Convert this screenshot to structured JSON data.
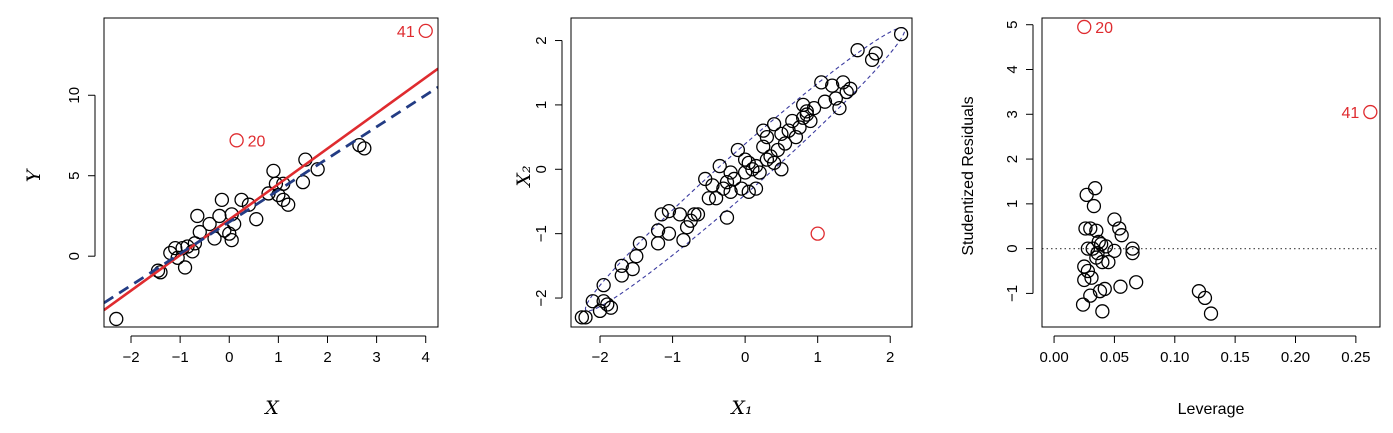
{
  "colors": {
    "points": "#000000",
    "highlight": "#DF2B2F",
    "fit_all": "#DF2B2F",
    "fit_excl": "#233C84",
    "ellipse": "#3C3CA0",
    "zero_line": "#555555"
  },
  "chart_data": [
    {
      "type": "scatter",
      "title": "",
      "xlabel": "X",
      "ylabel": "Y",
      "xlim": [
        -2.55,
        4.25
      ],
      "ylim": [
        -4.4,
        14.8
      ],
      "xticks": [
        -2,
        -1,
        0,
        1,
        2,
        3,
        4
      ],
      "yticks": [
        0,
        5,
        10
      ],
      "grid": false,
      "points": [
        [
          -2.3,
          -3.9
        ],
        [
          -1.45,
          -0.9
        ],
        [
          -1.4,
          -1.0
        ],
        [
          -1.2,
          0.2
        ],
        [
          -1.1,
          0.5
        ],
        [
          -1.05,
          -0.1
        ],
        [
          -0.95,
          0.5
        ],
        [
          -0.9,
          -0.7
        ],
        [
          -0.85,
          0.6
        ],
        [
          -0.75,
          0.3
        ],
        [
          -0.7,
          0.8
        ],
        [
          -0.65,
          2.5
        ],
        [
          -0.6,
          1.5
        ],
        [
          -0.4,
          2.0
        ],
        [
          -0.3,
          1.1
        ],
        [
          -0.2,
          2.5
        ],
        [
          -0.15,
          3.5
        ],
        [
          -0.1,
          1.6
        ],
        [
          0.0,
          1.4
        ],
        [
          0.05,
          1.0
        ],
        [
          0.05,
          2.6
        ],
        [
          0.1,
          2.0
        ],
        [
          0.25,
          3.5
        ],
        [
          0.4,
          3.2
        ],
        [
          0.55,
          2.3
        ],
        [
          0.8,
          3.9
        ],
        [
          0.9,
          5.3
        ],
        [
          0.95,
          4.5
        ],
        [
          1.0,
          3.8
        ],
        [
          1.1,
          4.5
        ],
        [
          1.1,
          3.5
        ],
        [
          1.2,
          3.2
        ],
        [
          1.5,
          4.6
        ],
        [
          1.55,
          6.0
        ],
        [
          1.8,
          5.4
        ],
        [
          2.65,
          6.9
        ],
        [
          2.75,
          6.7
        ]
      ],
      "highlighted": [
        {
          "label": "20",
          "x": 0.15,
          "y": 7.2,
          "label_side": "right"
        },
        {
          "label": "41",
          "x": 4.0,
          "y": 14.0,
          "label_side": "left"
        }
      ],
      "lines": [
        {
          "style": "solid",
          "color_key": "fit_all",
          "x": [
            -2.55,
            4.25
          ],
          "y": [
            -3.35,
            11.65
          ]
        },
        {
          "style": "dashed",
          "color_key": "fit_excl",
          "x": [
            -2.55,
            4.25
          ],
          "y": [
            -2.9,
            10.5
          ]
        }
      ]
    },
    {
      "type": "scatter",
      "title": "",
      "xlabel": "X₁",
      "ylabel": "X₂",
      "xlim": [
        -2.4,
        2.3
      ],
      "ylim": [
        -2.45,
        2.35
      ],
      "xticks": [
        -2,
        -1,
        0,
        1,
        2
      ],
      "yticks": [
        -2,
        -1,
        0,
        1,
        2
      ],
      "grid": false,
      "points": [
        [
          -2.25,
          -2.3
        ],
        [
          -2.2,
          -2.3
        ],
        [
          -2.1,
          -2.05
        ],
        [
          -2.0,
          -2.2
        ],
        [
          -1.95,
          -1.8
        ],
        [
          -1.95,
          -2.05
        ],
        [
          -1.9,
          -2.1
        ],
        [
          -1.85,
          -2.15
        ],
        [
          -1.7,
          -1.65
        ],
        [
          -1.7,
          -1.5
        ],
        [
          -1.55,
          -1.55
        ],
        [
          -1.5,
          -1.35
        ],
        [
          -1.45,
          -1.15
        ],
        [
          -1.2,
          -0.95
        ],
        [
          -1.2,
          -1.15
        ],
        [
          -1.15,
          -0.7
        ],
        [
          -1.05,
          -0.65
        ],
        [
          -1.05,
          -1.0
        ],
        [
          -0.9,
          -0.7
        ],
        [
          -0.85,
          -1.1
        ],
        [
          -0.8,
          -0.9
        ],
        [
          -0.75,
          -0.8
        ],
        [
          -0.7,
          -0.7
        ],
        [
          -0.65,
          -0.7
        ],
        [
          -0.55,
          -0.15
        ],
        [
          -0.5,
          -0.45
        ],
        [
          -0.45,
          -0.25
        ],
        [
          -0.4,
          -0.45
        ],
        [
          -0.35,
          0.05
        ],
        [
          -0.3,
          -0.3
        ],
        [
          -0.25,
          -0.2
        ],
        [
          -0.25,
          -0.75
        ],
        [
          -0.2,
          -0.35
        ],
        [
          -0.2,
          -0.05
        ],
        [
          -0.15,
          -0.15
        ],
        [
          -0.1,
          0.3
        ],
        [
          -0.05,
          -0.3
        ],
        [
          0.0,
          -0.05
        ],
        [
          0.0,
          0.15
        ],
        [
          0.05,
          0.1
        ],
        [
          0.05,
          -0.35
        ],
        [
          0.1,
          0.0
        ],
        [
          0.15,
          0.05
        ],
        [
          0.15,
          -0.3
        ],
        [
          0.2,
          -0.05
        ],
        [
          0.25,
          0.35
        ],
        [
          0.25,
          0.6
        ],
        [
          0.3,
          0.5
        ],
        [
          0.3,
          0.15
        ],
        [
          0.35,
          0.2
        ],
        [
          0.4,
          0.1
        ],
        [
          0.4,
          0.7
        ],
        [
          0.45,
          0.3
        ],
        [
          0.5,
          0.55
        ],
        [
          0.5,
          0.0
        ],
        [
          0.55,
          0.4
        ],
        [
          0.6,
          0.6
        ],
        [
          0.65,
          0.75
        ],
        [
          0.7,
          0.5
        ],
        [
          0.75,
          0.65
        ],
        [
          0.8,
          0.8
        ],
        [
          0.8,
          1.0
        ],
        [
          0.85,
          0.85
        ],
        [
          0.85,
          0.9
        ],
        [
          0.9,
          0.75
        ],
        [
          0.95,
          0.95
        ],
        [
          1.05,
          1.35
        ],
        [
          1.1,
          1.05
        ],
        [
          1.2,
          1.3
        ],
        [
          1.25,
          1.1
        ],
        [
          1.3,
          0.95
        ],
        [
          1.35,
          1.35
        ],
        [
          1.4,
          1.2
        ],
        [
          1.45,
          1.25
        ],
        [
          1.55,
          1.85
        ],
        [
          1.75,
          1.7
        ],
        [
          1.8,
          1.8
        ],
        [
          2.15,
          2.1
        ]
      ],
      "highlighted": [
        {
          "label": "",
          "x": 1.0,
          "y": -1.0,
          "label_side": "none"
        }
      ],
      "ellipse": {
        "center": [
          0.0,
          0.0
        ],
        "major_slope": 1.0,
        "half_major": 3.1,
        "half_minor": 0.28
      }
    },
    {
      "type": "scatter",
      "title": "",
      "xlabel": "Leverage",
      "ylabel": "Studentized Residuals",
      "xlim": [
        -0.01,
        0.27
      ],
      "ylim": [
        -1.75,
        5.15
      ],
      "xticks": [
        0.0,
        0.05,
        0.1,
        0.15,
        0.2,
        0.25
      ],
      "xtick_labels": [
        "0.00",
        "0.05",
        "0.10",
        "0.15",
        "0.20",
        "0.25"
      ],
      "yticks": [
        -1,
        0,
        1,
        2,
        3,
        4,
        5
      ],
      "grid": false,
      "points": [
        [
          0.024,
          -1.25
        ],
        [
          0.025,
          -0.4
        ],
        [
          0.025,
          -0.7
        ],
        [
          0.026,
          0.45
        ],
        [
          0.027,
          1.2
        ],
        [
          0.028,
          0.0
        ],
        [
          0.028,
          -0.5
        ],
        [
          0.03,
          0.45
        ],
        [
          0.03,
          -1.05
        ],
        [
          0.031,
          -0.65
        ],
        [
          0.032,
          0.0
        ],
        [
          0.033,
          0.95
        ],
        [
          0.034,
          1.35
        ],
        [
          0.035,
          0.4
        ],
        [
          0.035,
          -0.2
        ],
        [
          0.036,
          -0.1
        ],
        [
          0.037,
          0.15
        ],
        [
          0.038,
          -0.95
        ],
        [
          0.039,
          0.1
        ],
        [
          0.04,
          -0.3
        ],
        [
          0.04,
          -1.4
        ],
        [
          0.042,
          -0.9
        ],
        [
          0.043,
          0.05
        ],
        [
          0.045,
          -0.3
        ],
        [
          0.05,
          -0.05
        ],
        [
          0.05,
          0.65
        ],
        [
          0.054,
          0.45
        ],
        [
          0.055,
          -0.85
        ],
        [
          0.056,
          0.3
        ],
        [
          0.065,
          0.0
        ],
        [
          0.065,
          -0.1
        ],
        [
          0.068,
          -0.75
        ],
        [
          0.12,
          -0.95
        ],
        [
          0.125,
          -1.1
        ],
        [
          0.13,
          -1.45
        ]
      ],
      "highlighted": [
        {
          "label": "20",
          "x": 0.025,
          "y": 4.95,
          "label_side": "right"
        },
        {
          "label": "41",
          "x": 0.262,
          "y": 3.05,
          "label_side": "left"
        }
      ],
      "hlines": [
        {
          "y": 0,
          "style": "dotted",
          "color_key": "zero_line"
        }
      ]
    }
  ]
}
